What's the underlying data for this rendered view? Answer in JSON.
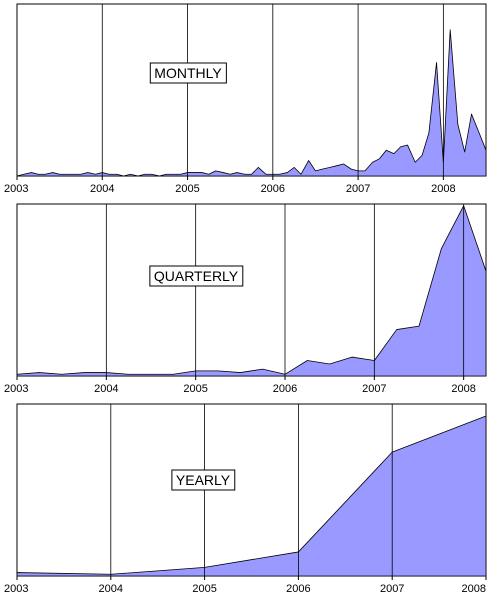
{
  "chart_data": [
    {
      "type": "area",
      "title": "MONTHLY",
      "x_ticks": [
        "2003",
        "2004",
        "2005",
        "2006",
        "2007",
        "2008"
      ],
      "x_range": [
        2003,
        2008.5
      ],
      "ylim": [
        0,
        100
      ],
      "grid": "vertical lines at year boundaries",
      "x": [
        2003.0,
        2003.08,
        2003.17,
        2003.25,
        2003.33,
        2003.42,
        2003.5,
        2003.58,
        2003.67,
        2003.75,
        2003.83,
        2003.92,
        2004.0,
        2004.08,
        2004.17,
        2004.25,
        2004.33,
        2004.42,
        2004.5,
        2004.58,
        2004.67,
        2004.75,
        2004.83,
        2004.92,
        2005.0,
        2005.08,
        2005.17,
        2005.25,
        2005.33,
        2005.42,
        2005.5,
        2005.58,
        2005.67,
        2005.75,
        2005.83,
        2005.92,
        2006.0,
        2006.08,
        2006.17,
        2006.25,
        2006.33,
        2006.42,
        2006.5,
        2006.58,
        2006.67,
        2006.75,
        2006.83,
        2006.92,
        2007.0,
        2007.08,
        2007.17,
        2007.25,
        2007.33,
        2007.42,
        2007.5,
        2007.58,
        2007.67,
        2007.75,
        2007.83,
        2007.92,
        2008.0,
        2008.08,
        2008.17,
        2008.25,
        2008.33,
        2008.42,
        2008.5
      ],
      "values": [
        0,
        1,
        2,
        1,
        1,
        2,
        1,
        1,
        1,
        1,
        2,
        1,
        2,
        1,
        1,
        0,
        1,
        0,
        1,
        1,
        0,
        1,
        1,
        1,
        2,
        2,
        2,
        1,
        3,
        2,
        1,
        2,
        1,
        1,
        5,
        1,
        1,
        1,
        2,
        5,
        1,
        9,
        3,
        4,
        5,
        6,
        7,
        4,
        3,
        3,
        8,
        10,
        15,
        13,
        17,
        18,
        8,
        12,
        25,
        66,
        8,
        85,
        30,
        14,
        36,
        25,
        15
      ]
    },
    {
      "type": "area",
      "title": "QUARTERLY",
      "x_ticks": [
        "2003",
        "2004",
        "2005",
        "2006",
        "2007",
        "2008"
      ],
      "x_range": [
        2003,
        2008.25
      ],
      "ylim": [
        0,
        100
      ],
      "grid": "vertical lines at year boundaries",
      "x": [
        2003.0,
        2003.25,
        2003.5,
        2003.75,
        2004.0,
        2004.25,
        2004.5,
        2004.75,
        2005.0,
        2005.25,
        2005.5,
        2005.75,
        2006.0,
        2006.25,
        2006.5,
        2006.75,
        2007.0,
        2007.25,
        2007.5,
        2007.75,
        2008.0,
        2008.25
      ],
      "values": [
        1,
        2,
        1,
        2,
        2,
        1,
        1,
        1,
        3,
        3,
        2,
        4,
        1,
        9,
        7,
        11,
        9,
        27,
        29,
        74,
        99,
        61
      ]
    },
    {
      "type": "area",
      "title": "YEARLY",
      "x_ticks": [
        "2003",
        "2004",
        "2005",
        "2006",
        "2007",
        "2008"
      ],
      "x_range": [
        2003,
        2008
      ],
      "ylim": [
        0,
        100
      ],
      "grid": "vertical lines at year boundaries",
      "x": [
        2003,
        2004,
        2005,
        2006,
        2007,
        2008
      ],
      "values": [
        2,
        1,
        5,
        14,
        72,
        93
      ]
    }
  ]
}
